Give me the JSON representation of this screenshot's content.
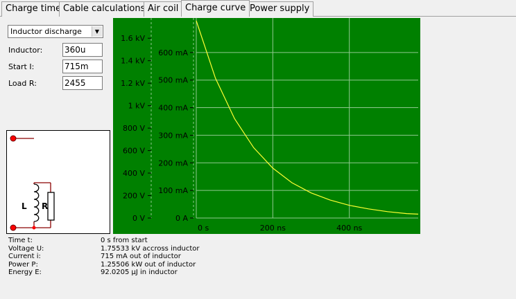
{
  "tabs": [
    {
      "label": "Charge time",
      "active": false
    },
    {
      "label": "Cable calculations",
      "active": false
    },
    {
      "label": "Air coil",
      "active": false
    },
    {
      "label": "Charge curve",
      "active": true
    },
    {
      "label": "Power supply",
      "active": false
    }
  ],
  "mode_select": {
    "value": "Inductor discharge"
  },
  "fields": {
    "inductor": {
      "label": "Inductor:",
      "value": "360u"
    },
    "start_i": {
      "label": "Start I:",
      "value": "715m"
    },
    "load_r": {
      "label": "Load R:",
      "value": "2455"
    }
  },
  "schematic": {
    "inductor_label": "L",
    "resistor_label": "R"
  },
  "colors": {
    "plot_bg": "#008000",
    "curve": "#ffff33",
    "grid": "#90c890",
    "node": "#ff0000",
    "wire": "#8b0000"
  },
  "chart_data": {
    "type": "line",
    "x_ticks": [
      "0 s",
      "200 ns",
      "400 ns"
    ],
    "x_tick_values": [
      0,
      200,
      400
    ],
    "xlim": [
      0,
      580
    ],
    "voltage_ticks": [
      "0 V",
      "200 V",
      "400 V",
      "600 V",
      "800 V",
      "1 kV",
      "1.2 kV",
      "1.4 kV",
      "1.6 kV"
    ],
    "voltage_tick_values": [
      0,
      200,
      400,
      600,
      800,
      1000,
      1200,
      1400,
      1600
    ],
    "voltage_lim": [
      0,
      1755.33
    ],
    "current_ticks": [
      "0 A",
      "100 mA",
      "200 mA",
      "300 mA",
      "400 mA",
      "500 mA",
      "600 mA"
    ],
    "current_tick_values": [
      0,
      100,
      200,
      300,
      400,
      500,
      600
    ],
    "current_lim": [
      0,
      715
    ],
    "series": [
      {
        "x": [
          0,
          50,
          100,
          150,
          200,
          250,
          300,
          350,
          400,
          450,
          500,
          550,
          580
        ],
        "y": [
          715,
          507,
          360,
          255,
          181,
          128,
          91,
          65,
          46,
          33,
          23,
          16,
          14
        ]
      }
    ]
  },
  "readout": [
    {
      "label": "Time t:",
      "value": "0 s from start"
    },
    {
      "label": "Voltage U:",
      "value": "1.75533 kV accross inductor"
    },
    {
      "label": "Current i:",
      "value": "715 mA out of inductor"
    },
    {
      "label": "Power P:",
      "value": "1.25506 kW out of inductor"
    },
    {
      "label": "Energy E:",
      "value": "92.0205 µJ in inductor"
    }
  ]
}
